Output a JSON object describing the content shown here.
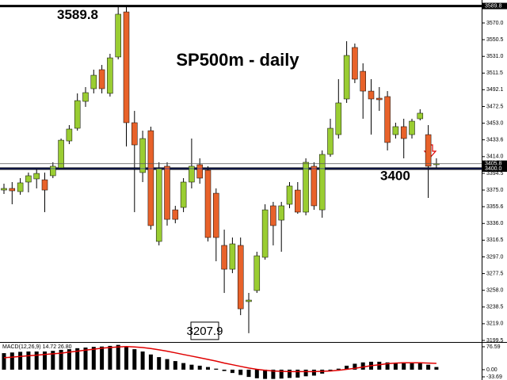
{
  "chart_data": {
    "type": "candlestick",
    "title": "SP500m - daily",
    "bull_color": "#9acd32",
    "bear_color": "#e8622a",
    "open": [
      3375.0,
      3376.9,
      3373.2,
      3384.3,
      3388.0,
      3387.0,
      3391.7,
      3400.9,
      3432.3,
      3447.1,
      3478.5,
      3493.3,
      3515.5,
      3487.8,
      3530.3,
      3582.9,
      3453.6,
      3395.4,
      3444.3,
      3315.0,
      3402.8,
      3351.9,
      3354.7,
      3384.3,
      3404.6,
      3398.1,
      3371.3,
      3310.4,
      3282.6,
      3310.4,
      3244.8,
      3257.7,
      3296.5,
      3356.6,
      3339.9,
      3358.4,
      3375.0,
      3349.2,
      3402.8,
      3351.9,
      3416.6,
      3439.7,
      3481.3,
      3541.4,
      3513.6,
      3490.5,
      3482.2,
      3484.1,
      3439.7,
      3449.0,
      3439.7,
      3458.2,
      3439.7,
      3404.6
    ],
    "high": [
      3382.4,
      3384.3,
      3388.9,
      3395.4,
      3400.0,
      3395.4,
      3407.4,
      3435.1,
      3450.8,
      3487.8,
      3495.2,
      3515.5,
      3521.0,
      3534.0,
      3589.8,
      3589.4,
      3467.4,
      3444.3,
      3449.0,
      3407.4,
      3407.4,
      3356.6,
      3388.9,
      3435.1,
      3412.0,
      3402.8,
      3376.9,
      3328.8,
      3319.6,
      3319.6,
      3254.9,
      3303.0,
      3358.4,
      3361.2,
      3361.2,
      3384.3,
      3384.3,
      3412.0,
      3407.4,
      3421.2,
      3458.2,
      3504.4,
      3548.7,
      3546.0,
      3522.9,
      3504.4,
      3495.2,
      3490.5,
      3453.6,
      3458.2,
      3458.2,
      3469.3,
      3450.8,
      3412.0
    ],
    "low": [
      3370.4,
      3358.4,
      3369.5,
      3372.3,
      3376.9,
      3349.2,
      3388.9,
      3400.0,
      3428.6,
      3444.3,
      3472.1,
      3487.8,
      3487.8,
      3484.1,
      3527.5,
      3425.9,
      3349.2,
      3384.3,
      3328.8,
      3310.4,
      3333.5,
      3336.2,
      3349.2,
      3376.9,
      3382.4,
      3315.0,
      3291.9,
      3254.9,
      3278.0,
      3229.0,
      3207.9,
      3254.9,
      3293.7,
      3310.4,
      3303.0,
      3353.8,
      3347.3,
      3345.5,
      3351.9,
      3342.7,
      3413.8,
      3435.1,
      3476.7,
      3499.8,
      3458.2,
      3439.7,
      3467.4,
      3421.2,
      3435.1,
      3412.0,
      3435.1,
      3456.3,
      3365.8,
      3400.9
    ],
    "close": [
      3376.9,
      3374.1,
      3383.4,
      3391.7,
      3394.4,
      3375.0,
      3402.8,
      3433.2,
      3446.2,
      3479.4,
      3488.7,
      3509.0,
      3493.3,
      3529.3,
      3580.2,
      3453.6,
      3427.7,
      3435.1,
      3333.5,
      3400.0,
      3340.8,
      3340.8,
      3384.3,
      3402.8,
      3388.9,
      3319.6,
      3319.6,
      3282.6,
      3312.2,
      3236.4,
      3246.6,
      3298.3,
      3351.9,
      3333.5,
      3356.6,
      3379.7,
      3349.2,
      3407.4,
      3356.6,
      3416.6,
      3447.1,
      3476.7,
      3532.1,
      3504.4,
      3490.5,
      3481.3,
      3480.4,
      3430.5,
      3449.0,
      3435.1,
      3455.4,
      3464.7,
      3402.8,
      3405.8
    ],
    "ylim": [
      3199.5,
      3596.8
    ],
    "yticks": [
      {
        "value": 3570,
        "label": "3570.0"
      },
      3550.5,
      {
        "value": 3531,
        "label": "3531.0"
      },
      3511.5,
      3492.1,
      3472.5,
      {
        "value": 3453,
        "label": "3453.0"
      },
      3433.6,
      {
        "value": 3414,
        "label": "3414.0"
      },
      3394.5,
      {
        "value": 3375,
        "label": "3375.0"
      },
      3355.6,
      {
        "value": 3336,
        "label": "3336.0"
      },
      3316.5,
      {
        "value": 3297,
        "label": "3297.0"
      },
      3277.5,
      {
        "value": 3258,
        "label": "3258.0"
      },
      3238.5,
      {
        "value": 3219,
        "label": "3219.0"
      },
      3199.5
    ],
    "price_markers": [
      3589.8,
      3405.8,
      {
        "value": 3400,
        "label": "3400.0"
      }
    ],
    "annotations": [
      {
        "label": "3589.8",
        "value": 3589.8
      },
      {
        "label": "3400",
        "value": 3400
      },
      {
        "label": "3207.9",
        "value": 3207.9
      }
    ],
    "indicator": {
      "label": "MACD(12,26,9) 14.72 26.80",
      "signal_color": "#e00000",
      "histogram": [
        50,
        52,
        54,
        55,
        55,
        55,
        57,
        60,
        62,
        65,
        67,
        69,
        70,
        72,
        75,
        70,
        62,
        55,
        46,
        38,
        32,
        26,
        20,
        15,
        12,
        8,
        3,
        -4,
        -10,
        -16,
        -22,
        -26,
        -28,
        -28,
        -27,
        -25,
        -24,
        -20,
        -18,
        -12,
        -5,
        3,
        12,
        18,
        22,
        24,
        24,
        22,
        21,
        20,
        20,
        20,
        15,
        8
      ],
      "signal": [
        36,
        38,
        40,
        42,
        44,
        46,
        48,
        50,
        53,
        56,
        59,
        62,
        65,
        67,
        69,
        70,
        69,
        67,
        64,
        60,
        56,
        51,
        46,
        41,
        36,
        31,
        26,
        20,
        15,
        10,
        5,
        1,
        -2,
        -4,
        -5,
        -6,
        -6,
        -6,
        -6,
        -5,
        -4,
        -2,
        1,
        4,
        8,
        12,
        15,
        18,
        20,
        21,
        21,
        21,
        20,
        19
      ],
      "y2lim": [
        -33.69,
        76.59
      ],
      "y2ticks": [
        76.59,
        {
          "value": 0,
          "label": "0.00"
        },
        -33.69
      ]
    }
  }
}
